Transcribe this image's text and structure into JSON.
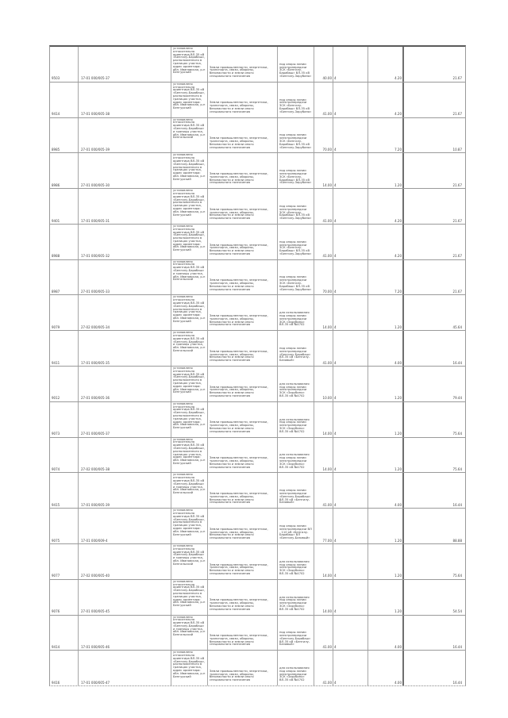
{
  "document": {
    "kind": "cadastral-parcels-appendix",
    "background_color": "#ffffff",
    "grid_line_color": "#9a9a9a",
    "text_color": "#3d3d3d"
  },
  "table": {
    "rows": [
      {
        "num": "9503",
        "cadastral": "17-01 000/005-37",
        "location": "установлено относительно ориентира ВЛ-35 кВ «Бенгилу-Барабаш», расположенного в границах участка, адрес ориентира: обл. Ивановская, р-н Бенгурский",
        "category": "Земли промышленности, энергетики, транспорта, связи, обороны, безопасности и земли иного специального назначения",
        "use": "под опоры линии электропередачи ЗСК «Бенгилу-Барабаш» ВЛ-35 кВ «Бенгилу-Зарубино»",
        "area": "40.00",
        "qty": "4",
        "share": "4.20",
        "value": "21.67"
      },
      {
        "num": "9414",
        "cadastral": "17-01 000/005-38",
        "location": "установлено относительно ориентира ВЛ-35 кВ «Бенгилу-Барабаш», расположенного в границах участка, адрес ориентира: обл. Ивановская, р-н Бенгурский",
        "category": "Земли промышленности, энергетики, транспорта, связи, обороны, безопасности и земли иного специального назначения",
        "use": "под опоры линии электропередачи ЗСК «Бенгилу-Барабаш» ВЛ-35 кВ «Бенгилу-Зарубино»",
        "area": "41.00",
        "qty": "4",
        "share": "4.20",
        "value": "21.67"
      },
      {
        "num": "8985",
        "cadastral": "27-01 000/005-39",
        "location": "установлено относительно ориентира ВЛ-35 кВ «Бенгилу-Барабаш» и границы участка, обл. Ивановская, р-н Бенгальский",
        "category": "Земли промышленности, энергетики, транспорта, связи, обороны, безопасности и земли иного специального назначения",
        "use": "под опоры линии электропередачи ЗСК «Бенгилу-Барабаш» ВЛ-35 кВ «Бенгилу-Зарубино»",
        "area": "70.00",
        "qty": "4",
        "share": "7.20",
        "value": "10.87"
      },
      {
        "num": "8986",
        "cadastral": "27-01 000/005-30",
        "location": "установлено относительно ориентира ВЛ-35 кВ «Бенгилу-Барабаш», расположенного в границах участка, адрес ориентира: обл. Ивановская, р-н Бенгурский",
        "category": "Земли промышленности, энергетики, транспорта, связи, обороны, безопасности и земли иного специального назначения",
        "use": "под опоры линии электропередачи ЗСК «Бенгилу-Барабаш» ВЛ-35 кВ «Бенгилу-Зарубино»",
        "area": "14.00",
        "qty": "4",
        "share": "1.20",
        "value": "21.67"
      },
      {
        "num": "9401",
        "cadastral": "17-01 000/005-31",
        "location": "установлено относительно ориентира ВЛ-35 кВ «Бенгилу-Барабаш», расположенного в границах участка, адрес ориентира: обл. Ивановская, р-н Бенгурский",
        "category": "Земли промышленности, энергетики, транспорта, связи, обороны, безопасности и земли иного специального назначения",
        "use": "под опоры линии электропередачи ЗСК «Бенгилу-Барабаш» ВЛ-35 кВ «Бенгилу-Зарубино»",
        "area": "41.00",
        "qty": "4",
        "share": "4.20",
        "value": "21.67"
      },
      {
        "num": "8988",
        "cadastral": "17-01 000/005-32",
        "location": "установлено относительно ориентира ВЛ-35 кВ «Бенгилу-Барабаш», расположенного в границах участка, адрес ориентира: обл. Ивановская, р-н Бенгурский",
        "category": "Земли промышленности, энергетики, транспорта, связи, обороны, безопасности и земли иного специального назначения",
        "use": "под опоры линии электропередачи ЗСК «Бенгилу-Барабаш» ВЛ-35 кВ «Бенгилу-Зарубино»",
        "area": "41.00",
        "qty": "4",
        "share": "4.20",
        "value": "21.67"
      },
      {
        "num": "8987",
        "cadastral": "27-01 000/005-33",
        "location": "установлено относительно ориентира ВЛ-35 кВ «Бенгилу-Барабаш» и границы участка, обл. Ивановская, р-н Бенгальский",
        "category": "Земли промышленности, энергетики, транспорта, связи, обороны, безопасности и земли иного специального назначения",
        "use": "под опоры линии электропередачи ЗСК «Бенгилу-Барабаш» ВЛ-35 кВ «Бенгилу-Зарубино»",
        "area": "70.00",
        "qty": "4",
        "share": "7.20",
        "value": "21.67"
      },
      {
        "num": "9079",
        "cadastral": "27-02 000/005-34",
        "location": "установлено относительно ориентира ВЛ-35 кВ «Бенгилу-Барабаш», расположенного в границах участка, адрес ориентира: обл. Ивановская, р-н Бенгурский",
        "category": "Земли промышленности, энергетики, транспорта, связи, обороны, безопасности и земли иного специального назначения",
        "use": "для использования под опоры линии электропередачи ЗСК «Зарубино» ВЛ-35 кВ №4702",
        "area": "14.00",
        "qty": "4",
        "share": "1.20",
        "value": "45.64"
      },
      {
        "num": "9411",
        "cadastral": "17-01 000/005-35",
        "location": "установлено относительно ориентира ВЛ-35 кВ «Бенгилу-Барабаш» и границы участка, обл. Ивановская, р-н Бенгальский",
        "category": "Земли промышленности, энергетики, транспорта, связи, обороны, безопасности и земли иного специального назначения",
        "use": "под опоры линии электропередачи «Бенгилу-Барабаш» ВЛ-35 кВ «Бенгилу-Базовый»",
        "area": "41.00",
        "qty": "4",
        "share": "4.00",
        "value": "16.44"
      },
      {
        "num": "9012",
        "cadastral": "27-01 000/005-36",
        "location": "установлено относительно ориентира ВЛ-35 кВ «Бенгилу-Барабаш», расположенного в границах участка, адрес ориентира: обл. Ивановская, р-н Бенгурский",
        "category": "Земли промышленности, энергетики, транспорта, связи, обороны, безопасности и земли иного специального назначения",
        "use": "для использования под опоры линии электропередачи ЗСК «Зарубино» ВЛ-35 кВ №4702",
        "area": "10.00",
        "qty": "4",
        "share": "1.20",
        "value": "79.44"
      },
      {
        "num": "9073",
        "cadastral": "27-01 000/005-37",
        "location": "установлено относительно ориентира ВЛ-35 кВ «Бенгилу-Барабаш», расположенного в границах участка, адрес ориентира: обл. Ивановская, р-н Бенгурский",
        "category": "Земли промышленности, энергетики, транспорта, связи, обороны, безопасности и земли иного специального назначения",
        "use": "для использования под опоры линии электропередачи ЗСК «Зарубино» ВЛ-35 кВ №4702",
        "area": "14.00",
        "qty": "4",
        "share": "1.20",
        "value": "75.64"
      },
      {
        "num": "9074",
        "cadastral": "27-02 000/005-38",
        "location": "установлено относительно ориентира ВЛ-35 кВ «Бенгилу-Барабаш», расположенного в границах участка, адрес ориентира: обл. Ивановская, р-н Бенгурский",
        "category": "Земли промышленности, энергетики, транспорта, связи, обороны, безопасности и земли иного специального назначения",
        "use": "для использования под опоры линии электропередачи ЗСК «Зарубино» ВЛ-35 кВ №4702",
        "area": "14.00",
        "qty": "4",
        "share": "1.20",
        "value": "75.64"
      },
      {
        "num": "9415",
        "cadastral": "17-01 000/005-39",
        "location": "установлено относительно ориентира ВЛ-35 кВ «Бенгилу-Барабаш» и границы участка, обл. Ивановская, р-н Бенгальский",
        "category": "Земли промышленности, энергетики, транспорта, связи, обороны, безопасности и земли иного специального назначения",
        "use": "под опоры линии электропередачи «Бенгилу-Барабаш» ВЛ-35 кВ «Бенгилу-Базовый»",
        "area": "41.00",
        "qty": "4",
        "share": "4.00",
        "value": "16.44"
      },
      {
        "num": "9075",
        "cadastral": "17-01 000/009-4",
        "location": "установлено относительно ориентира ВЛ-35 кВ «Бенгилу-Барабаш», расположенного в границах участка, адрес ориентира: обл. Ивановская, р-н Бенгурский",
        "category": "Земли промышленности, энергетики, транспорта, связи, обороны, безопасности и земли иного специального назначения",
        "use": "под опоры линии электропередачи ВЛ - 110 кВ «Бенгилу-Барабаш» ВЛ «Бенгилу-Базовый»",
        "area": "77.00",
        "qty": "4",
        "share": "1.20",
        "value": "88.88"
      },
      {
        "num": "9077",
        "cadastral": "27-02 000/005-40",
        "location": "установлено относительно ориентира ВЛ-35 кВ «Бенгилу-Барабаш» и границы участка, обл. Ивановская, р-н Бенгальский",
        "category": "Земли промышленности, энергетики, транспорта, связи, обороны, безопасности и земли иного специального назначения",
        "use": "для использования под опоры линии электропередачи ЗСК «Зарубино» ВЛ-35 кВ №4702",
        "area": "14.00",
        "qty": "4",
        "share": "1.20",
        "value": "75.64"
      },
      {
        "num": "9076",
        "cadastral": "27-01 000/005-45",
        "location": "установлено относительно ориентира ВЛ-35 кВ «Бенгилу-Барабаш», расположенного в границах участка, адрес ориентира: обл. Ивановская, р-н Бенгурский",
        "category": "Земли промышленности, энергетики, транспорта, связи, обороны, безопасности и земли иного специального назначения",
        "use": "для использования под опоры линии электропередачи ЗСК «Зарубино» ВЛ-35 кВ №4702",
        "area": "14.00",
        "qty": "4",
        "share": "1.20",
        "value": "54.54"
      },
      {
        "num": "9414",
        "cadastral": "17-01 000/005-46",
        "location": "установлено относительно ориентира ВЛ-35 кВ «Бенгилу-Барабаш» и границы участка, обл. Ивановская, р-н Бенгальский",
        "category": "Земли промышленности, энергетики, транспорта, связи, обороны, безопасности и земли иного специального назначения",
        "use": "под опоры линии электропередачи «Бенгилу-Барабаш» ВЛ-35 кВ «Бенгилу-Базовый»",
        "area": "41.00",
        "qty": "4",
        "share": "4.00",
        "value": "16.44"
      },
      {
        "num": "9416",
        "cadastral": "17-01 000/005-47",
        "location": "установлено относительно ориентира ВЛ-35 кВ «Бенгилу-Барабаш», расположенного в границах участка, адрес ориентира: обл. Ивановская, р-н Бенгурский",
        "category": "Земли промышленности, энергетики, транспорта, связи, обороны, безопасности и земли иного специального назначения",
        "use": "для использования под опоры линии электропередачи ЗСК «Зарубино» ВЛ-35 кВ №4702",
        "area": "41.00",
        "qty": "4",
        "share": "4.00",
        "value": "16.44"
      }
    ]
  }
}
